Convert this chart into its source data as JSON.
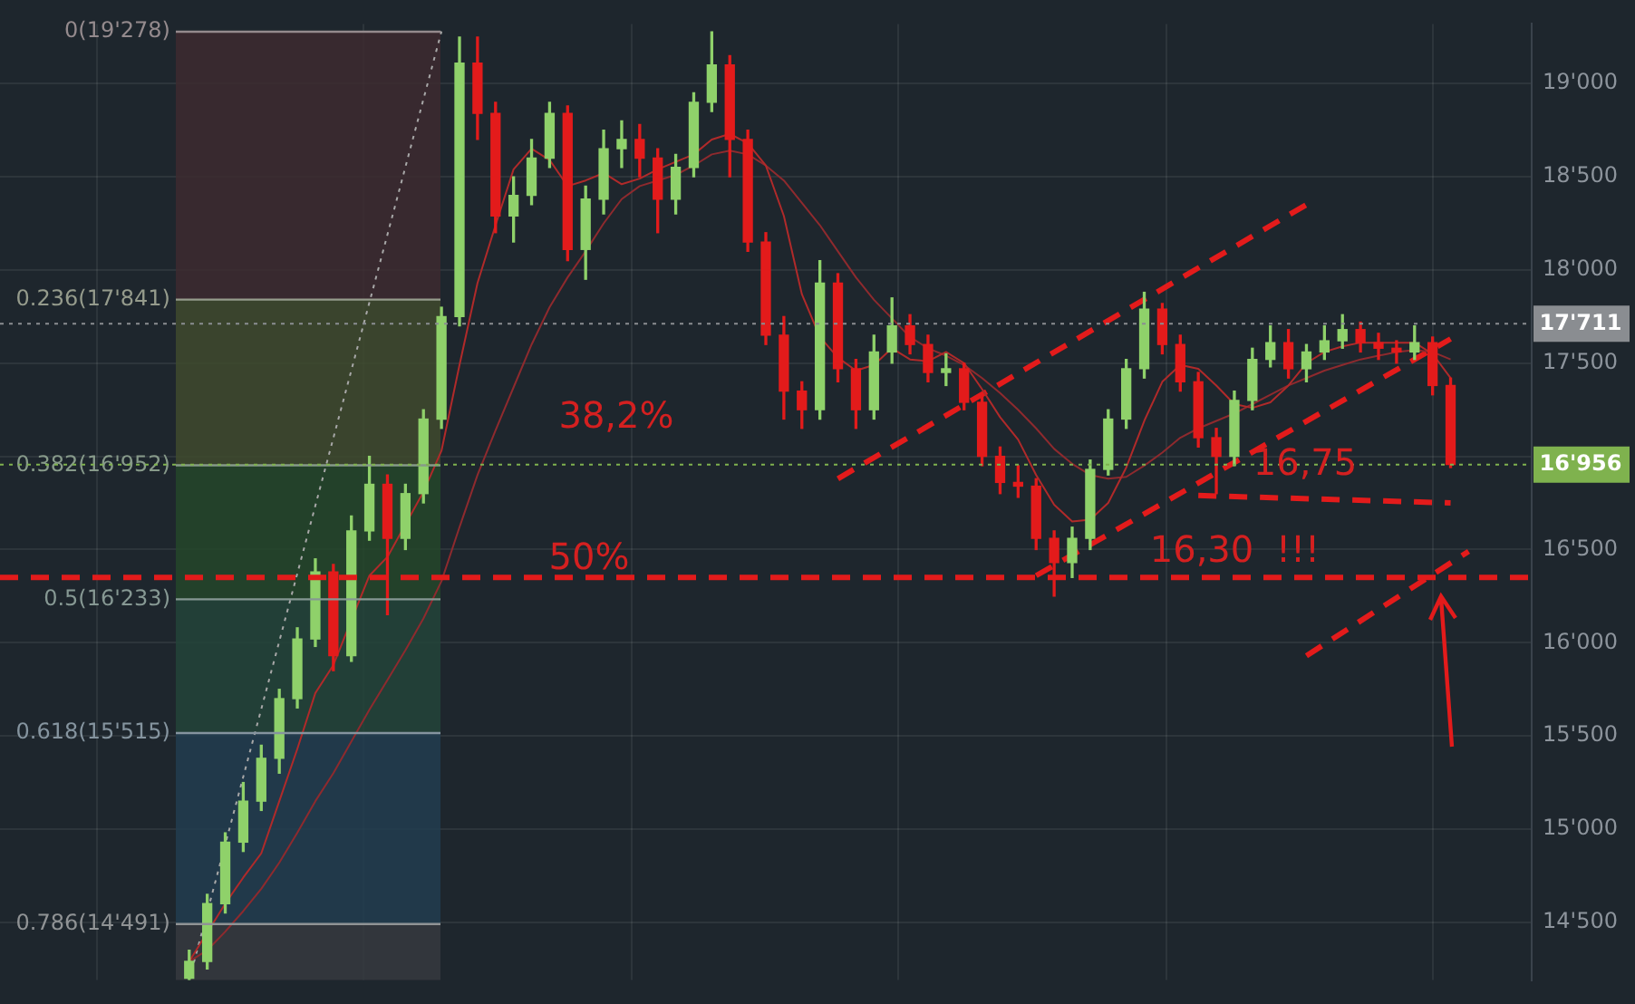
{
  "chart_data": {
    "type": "candlestick",
    "categories": [
      null,
      null,
      null,
      null,
      null,
      null,
      null,
      null,
      null,
      null,
      null,
      null,
      null,
      null,
      null,
      null,
      null,
      null,
      null,
      null,
      null,
      null,
      null,
      null,
      null,
      null,
      null,
      null,
      null,
      null,
      null,
      null,
      null,
      null,
      null,
      null,
      null,
      null,
      null,
      null,
      null,
      null,
      null,
      null,
      null,
      null,
      null,
      null,
      null,
      null,
      null,
      null,
      null,
      null,
      null,
      null,
      null,
      null,
      null,
      null,
      null,
      null,
      null,
      null,
      null,
      null,
      null,
      null,
      null,
      null,
      null,
      null,
      null,
      null,
      null,
      null,
      null,
      null,
      null,
      null,
      null,
      null,
      null,
      null,
      null
    ],
    "ohlc": [
      null,
      null,
      null,
      null,
      null,
      null,
      null,
      null,
      null,
      null,
      [
        14200,
        14350,
        14190,
        14290
      ],
      [
        14290,
        14650,
        14250,
        14600
      ],
      [
        14600,
        14980,
        14550,
        14930
      ],
      [
        14930,
        15250,
        14880,
        15150
      ],
      [
        15150,
        15450,
        15100,
        15380
      ],
      [
        15380,
        15750,
        15300,
        15700
      ],
      [
        15700,
        16080,
        15650,
        16020
      ],
      [
        16020,
        16450,
        15980,
        16380
      ],
      [
        16380,
        16420,
        15850,
        15930
      ],
      [
        15930,
        16680,
        15900,
        16600
      ],
      [
        16600,
        17000,
        16550,
        16850
      ],
      [
        16850,
        16900,
        16150,
        16560
      ],
      [
        16560,
        16850,
        16500,
        16800
      ],
      [
        16800,
        17250,
        16750,
        17200
      ],
      [
        17200,
        17800,
        17150,
        17750
      ],
      [
        17750,
        19250,
        17700,
        19110
      ],
      [
        19110,
        19250,
        18700,
        18840
      ],
      [
        18840,
        18900,
        18200,
        18290
      ],
      [
        18290,
        18500,
        18150,
        18400
      ],
      [
        18400,
        18700,
        18350,
        18600
      ],
      [
        18600,
        18900,
        18550,
        18840
      ],
      [
        18840,
        18880,
        18050,
        18110
      ],
      [
        18110,
        18450,
        17950,
        18380
      ],
      [
        18380,
        18750,
        18300,
        18650
      ],
      [
        18650,
        18800,
        18550,
        18700
      ],
      [
        18700,
        18780,
        18500,
        18600
      ],
      [
        18600,
        18650,
        18200,
        18380
      ],
      [
        18380,
        18620,
        18300,
        18550
      ],
      [
        18550,
        18950,
        18500,
        18900
      ],
      [
        18900,
        19278,
        18850,
        19100
      ],
      [
        19100,
        19150,
        18500,
        18700
      ],
      [
        18700,
        18750,
        18100,
        18150
      ],
      [
        18150,
        18200,
        17600,
        17650
      ],
      [
        17650,
        17750,
        17200,
        17350
      ],
      [
        17350,
        17400,
        17150,
        17250
      ],
      [
        17250,
        18050,
        17200,
        17930
      ],
      [
        17930,
        17980,
        17400,
        17470
      ],
      [
        17470,
        17520,
        17150,
        17250
      ],
      [
        17250,
        17650,
        17200,
        17560
      ],
      [
        17560,
        17850,
        17500,
        17700
      ],
      [
        17700,
        17760,
        17550,
        17600
      ],
      [
        17600,
        17650,
        17400,
        17450
      ],
      [
        17450,
        17550,
        17380,
        17470
      ],
      [
        17470,
        17500,
        17250,
        17290
      ],
      [
        17290,
        17320,
        16950,
        17000
      ],
      [
        17000,
        17050,
        16800,
        16860
      ],
      [
        16860,
        16950,
        16780,
        16840
      ],
      [
        16840,
        16880,
        16500,
        16560
      ],
      [
        16560,
        16600,
        16250,
        16430
      ],
      [
        16430,
        16620,
        16350,
        16560
      ],
      [
        16560,
        16980,
        16500,
        16930
      ],
      [
        16930,
        17250,
        16900,
        17200
      ],
      [
        17200,
        17520,
        17150,
        17470
      ],
      [
        17470,
        17880,
        17420,
        17790
      ],
      [
        17790,
        17820,
        17550,
        17600
      ],
      [
        17600,
        17650,
        17350,
        17400
      ],
      [
        17400,
        17450,
        17050,
        17100
      ],
      [
        17100,
        17150,
        16800,
        17000
      ],
      [
        17000,
        17350,
        16950,
        17300
      ],
      [
        17300,
        17580,
        17250,
        17520
      ],
      [
        17520,
        17700,
        17480,
        17610
      ],
      [
        17610,
        17680,
        17420,
        17470
      ],
      [
        17470,
        17600,
        17400,
        17560
      ],
      [
        17560,
        17700,
        17520,
        17620
      ],
      [
        17620,
        17760,
        17580,
        17680
      ],
      [
        17680,
        17720,
        17560,
        17610
      ],
      [
        17610,
        17660,
        17520,
        17580
      ],
      [
        17580,
        17620,
        17500,
        17560
      ],
      [
        17560,
        17700,
        17520,
        17610
      ],
      [
        17610,
        17640,
        17330,
        17380
      ],
      [
        17380,
        17420,
        16940,
        16956
      ],
      null,
      null,
      null,
      null
    ],
    "colors": [
      null,
      null,
      null,
      null,
      null,
      null,
      null,
      null,
      null,
      null,
      "#8fd16a",
      "#8fd16a",
      "#8fd16a",
      "#8fd16a",
      "#8fd16a",
      "#8fd16a",
      "#8fd16a",
      "#8fd16a",
      "#e31b1b",
      "#8fd16a",
      "#8fd16a",
      "#e31b1b",
      "#8fd16a",
      "#8fd16a",
      "#8fd16a",
      "#8fd16a",
      "#e31b1b",
      "#e31b1b",
      "#8fd16a",
      "#8fd16a",
      "#8fd16a",
      "#e31b1b",
      "#8fd16a",
      "#8fd16a",
      "#8fd16a",
      "#e31b1b",
      "#e31b1b",
      "#8fd16a",
      "#8fd16a",
      "#8fd16a",
      "#e31b1b",
      "#e31b1b",
      "#e31b1b",
      "#e31b1b",
      "#e31b1b",
      "#8fd16a",
      "#e31b1b",
      "#e31b1b",
      "#8fd16a",
      "#8fd16a",
      "#e31b1b",
      "#e31b1b",
      "#8fd16a",
      "#e31b1b",
      "#e31b1b",
      "#e31b1b",
      "#e31b1b",
      "#e31b1b",
      "#e31b1b",
      "#8fd16a",
      "#8fd16a",
      "#8fd16a",
      "#8fd16a",
      "#8fd16a",
      "#e31b1b",
      "#e31b1b",
      "#e31b1b",
      "#e31b1b",
      "#8fd16a",
      "#8fd16a",
      "#8fd16a",
      "#e31b1b",
      "#8fd16a",
      "#8fd16a",
      "#8fd16a",
      "#e31b1b",
      "#e31b1b",
      "#e31b1b",
      "#8fd16a",
      "#e31b1b",
      "#e31b1b",
      null,
      null,
      null,
      null
    ],
    "series": [
      {
        "type": "line",
        "color": "#b02a2a",
        "line_style": "solid",
        "values": [
          null,
          null,
          null,
          null,
          null,
          null,
          null,
          null,
          null,
          null,
          14290,
          null,
          14600,
          14740,
          14870,
          15150,
          15430,
          15730,
          15880,
          null,
          16360,
          16460,
          null,
          16810,
          17030,
          17490,
          17930,
          18240,
          18540,
          18650,
          18590,
          18450,
          18480,
          18520,
          18460,
          18490,
          18540,
          18580,
          18620,
          18700,
          18730,
          18680,
          18560,
          18290,
          17870,
          17640,
          17530,
          17460,
          17490,
          17580,
          17520,
          17510,
          17560,
          17500,
          17360,
          17210,
          17090,
          16900,
          16740,
          16650,
          16660,
          16750,
          16940,
          17190,
          17400,
          17490,
          17470,
          17380,
          17280,
          17260,
          17290,
          17380,
          17500,
          17560,
          17590,
          17610,
          17610,
          17610,
          17610,
          17550,
          17420,
          null,
          null,
          null,
          null
        ]
      },
      {
        "type": "line",
        "color": "#8e2a2e",
        "line_style": "solid",
        "values": [
          null,
          null,
          null,
          null,
          null,
          null,
          null,
          null,
          null,
          null,
          14290,
          14350,
          14450,
          14560,
          14680,
          14820,
          14980,
          15150,
          15300,
          15470,
          15640,
          15800,
          15960,
          16130,
          16330,
          16620,
          16900,
          17140,
          17370,
          17600,
          17800,
          17960,
          18100,
          18250,
          18380,
          18450,
          18480,
          18510,
          18560,
          18620,
          18640,
          18620,
          18560,
          18480,
          18360,
          18240,
          18100,
          17960,
          17840,
          17740,
          17640,
          17580,
          17540,
          17490,
          17420,
          17340,
          17250,
          17150,
          17040,
          16960,
          16900,
          16880,
          16890,
          16950,
          17020,
          17100,
          17150,
          17190,
          17230,
          17280,
          17330,
          17380,
          17420,
          17460,
          17490,
          17520,
          17540,
          17560,
          17570,
          17560,
          17520,
          null,
          null,
          null,
          null
        ]
      },
      {
        "type": "line",
        "color": "#a8a8a8",
        "line_style": "dotted",
        "values": [
          null,
          null,
          null,
          null,
          null,
          null,
          null,
          null,
          null,
          null,
          14190,
          null,
          null,
          null,
          null,
          null,
          null,
          null,
          null,
          null,
          null,
          null,
          null,
          null,
          19280,
          null,
          null,
          null,
          null,
          null,
          null,
          null,
          null,
          null,
          null,
          null,
          null,
          null,
          null,
          null,
          null,
          null,
          null,
          null,
          null,
          null,
          null,
          null,
          null,
          null,
          null,
          null,
          null,
          null,
          null,
          null,
          null,
          null,
          null,
          null,
          null,
          null,
          null,
          null,
          null,
          null,
          null,
          null,
          null,
          null,
          null,
          null,
          null,
          null,
          null,
          null,
          null,
          null,
          null,
          null,
          null,
          null,
          null,
          null,
          null
        ]
      },
      {
        "type": "line",
        "color": "#e31b1b",
        "line_style": "dashed",
        "values": [
          null,
          null,
          null,
          null,
          null,
          null,
          null,
          null,
          null,
          null,
          null,
          null,
          null,
          null,
          null,
          null,
          null,
          null,
          null,
          null,
          null,
          null,
          null,
          null,
          null,
          null,
          null,
          null,
          null,
          null,
          null,
          null,
          null,
          null,
          null,
          null,
          null,
          null,
          null,
          null,
          null,
          null,
          null,
          null,
          null,
          null,
          16880,
          null,
          null,
          null,
          null,
          null,
          null,
          null,
          null,
          null,
          null,
          null,
          null,
          null,
          null,
          null,
          null,
          null,
          null,
          null,
          null,
          null,
          null,
          null,
          null,
          null,
          18350,
          null,
          null,
          null,
          null,
          null,
          null,
          null,
          null,
          null,
          null,
          null,
          null
        ]
      },
      {
        "type": "line",
        "color": "#e31b1b",
        "line_style": "dashed",
        "values": [
          null,
          null,
          null,
          null,
          null,
          null,
          null,
          null,
          null,
          null,
          null,
          null,
          null,
          null,
          null,
          null,
          null,
          null,
          null,
          null,
          null,
          null,
          null,
          null,
          null,
          null,
          null,
          null,
          null,
          null,
          null,
          null,
          null,
          null,
          null,
          null,
          null,
          null,
          null,
          null,
          null,
          null,
          null,
          null,
          null,
          null,
          null,
          null,
          null,
          null,
          null,
          null,
          null,
          null,
          null,
          null,
          null,
          16360,
          null,
          null,
          null,
          null,
          null,
          null,
          null,
          null,
          null,
          null,
          null,
          null,
          null,
          null,
          null,
          null,
          null,
          null,
          null,
          null,
          null,
          null,
          17630,
          null,
          null,
          null,
          null
        ]
      },
      {
        "type": "line",
        "color": "#e31b1b",
        "line_style": "dashed",
        "values": [
          null,
          null,
          null,
          null,
          null,
          null,
          null,
          null,
          null,
          null,
          null,
          null,
          null,
          null,
          null,
          null,
          null,
          null,
          null,
          null,
          null,
          null,
          null,
          null,
          null,
          null,
          null,
          null,
          null,
          null,
          null,
          null,
          null,
          null,
          null,
          null,
          null,
          null,
          null,
          null,
          null,
          null,
          null,
          null,
          null,
          null,
          null,
          null,
          null,
          null,
          null,
          null,
          null,
          null,
          null,
          null,
          null,
          null,
          null,
          null,
          null,
          null,
          null,
          null,
          null,
          null,
          null,
          null,
          null,
          null,
          null,
          null,
          15930,
          null,
          null,
          null,
          null,
          null,
          null,
          null,
          null,
          16490,
          null,
          null,
          null
        ]
      },
      {
        "type": "line",
        "color": "#e31b1b",
        "line_style": "dashed",
        "values": [
          null,
          null,
          null,
          null,
          null,
          null,
          null,
          null,
          null,
          null,
          null,
          null,
          null,
          null,
          null,
          null,
          null,
          null,
          null,
          null,
          null,
          null,
          null,
          null,
          null,
          null,
          null,
          null,
          null,
          null,
          null,
          null,
          null,
          null,
          null,
          null,
          null,
          null,
          null,
          null,
          null,
          null,
          null,
          null,
          null,
          null,
          null,
          null,
          null,
          null,
          null,
          null,
          null,
          null,
          null,
          null,
          null,
          null,
          null,
          null,
          null,
          null,
          null,
          null,
          null,
          null,
          16790,
          null,
          null,
          null,
          null,
          null,
          null,
          null,
          null,
          null,
          null,
          null,
          null,
          null,
          16750,
          null,
          null,
          null,
          null
        ]
      }
    ],
    "ylim": [
      14190,
      19320
    ],
    "yticks": [
      {
        "value": 14500,
        "label": "14'500"
      },
      {
        "value": 15000,
        "label": "15'000"
      },
      {
        "value": 15500,
        "label": "15'500"
      },
      {
        "value": 16000,
        "label": "16'000"
      },
      {
        "value": 16500,
        "label": "16'500"
      },
      {
        "value": 17000,
        "label": null
      },
      {
        "value": 17500,
        "label": "17'500"
      },
      {
        "value": 18000,
        "label": "18'000"
      },
      {
        "value": 18500,
        "label": "18'500"
      },
      {
        "value": 19000,
        "label": "19'000"
      }
    ],
    "bands": [
      {
        "axis": "y",
        "from": 19278,
        "to": 17841,
        "label": "0(19'278)",
        "color": "#3d2a30"
      },
      {
        "axis": "y",
        "from": 17841,
        "to": 16952,
        "label": "0.236(17'841)",
        "color": "#3f4a2e"
      },
      {
        "axis": "y",
        "from": 16952,
        "to": 16233,
        "label": "0.382(16'952)",
        "color": "#25472a"
      },
      {
        "axis": "y",
        "from": 16233,
        "to": 15515,
        "label": "0.5(16'233)",
        "color": "#23443a"
      },
      {
        "axis": "y",
        "from": 15515,
        "to": 14491,
        "label": "0.618(15'515)",
        "color": "#223d50"
      },
      {
        "axis": "y",
        "from": 14491,
        "to": 14190,
        "label": "0.786(14'491)",
        "color": "#363a3f"
      }
    ],
    "ref_lines": [
      {
        "axis": "y",
        "value": 16350,
        "color": "#e31b1b",
        "line_style": "dashed"
      },
      {
        "axis": "y",
        "value": 17711,
        "label": "17'711",
        "color": "#8a8d91",
        "line_style": "dotted"
      },
      {
        "axis": "y",
        "value": 16956,
        "label": "16'956",
        "color": "#7fb24e",
        "line_style": "dotted"
      }
    ],
    "annotations": [
      "38,2%",
      "50%",
      "16,75",
      "16,30",
      "!!!"
    ],
    "grid": true,
    "legend": false,
    "marker": "none",
    "tick_labels": "y"
  }
}
